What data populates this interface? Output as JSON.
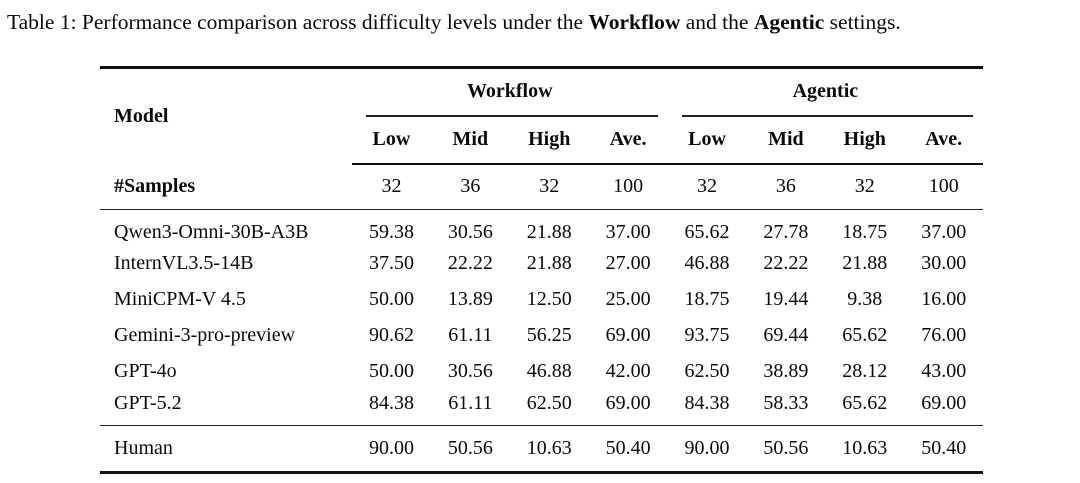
{
  "caption": {
    "prefix": "Table 1: Performance comparison across difficulty levels under the ",
    "workflow": "Workflow",
    "middle": " and the ",
    "agentic": "Agentic",
    "suffix": " settings."
  },
  "table": {
    "model_header": "Model",
    "groups": [
      {
        "label": "Workflow",
        "columns": [
          "Low",
          "Mid",
          "High",
          "Ave."
        ]
      },
      {
        "label": "Agentic",
        "columns": [
          "Low",
          "Mid",
          "High",
          "Ave."
        ]
      }
    ],
    "samples_row": {
      "label": "#Samples",
      "values": [
        "32",
        "36",
        "32",
        "100",
        "32",
        "36",
        "32",
        "100"
      ]
    },
    "model_rows": [
      {
        "model": "Qwen3-Omni-30B-A3B",
        "values": [
          "59.38",
          "30.56",
          "21.88",
          "37.00",
          "65.62",
          "27.78",
          "18.75",
          "37.00"
        ]
      },
      {
        "model": "InternVL3.5-14B",
        "values": [
          "37.50",
          "22.22",
          "21.88",
          "27.00",
          "46.88",
          "22.22",
          "21.88",
          "30.00"
        ]
      },
      {
        "model": "MiniCPM-V 4.5",
        "values": [
          "50.00",
          "13.89",
          "12.50",
          "25.00",
          "18.75",
          "19.44",
          "9.38",
          "16.00"
        ]
      },
      {
        "model": "Gemini-3-pro-preview",
        "values": [
          "90.62",
          "61.11",
          "56.25",
          "69.00",
          "93.75",
          "69.44",
          "65.62",
          "76.00"
        ]
      },
      {
        "model": "GPT-4o",
        "values": [
          "50.00",
          "30.56",
          "46.88",
          "42.00",
          "62.50",
          "38.89",
          "28.12",
          "43.00"
        ]
      },
      {
        "model": "GPT-5.2",
        "values": [
          "84.38",
          "61.11",
          "62.50",
          "69.00",
          "84.38",
          "58.33",
          "65.62",
          "69.00"
        ]
      }
    ],
    "human_row": {
      "label": "Human",
      "values": [
        "90.00",
        "50.56",
        "10.63",
        "50.40",
        "90.00",
        "50.56",
        "10.63",
        "50.40"
      ]
    }
  }
}
